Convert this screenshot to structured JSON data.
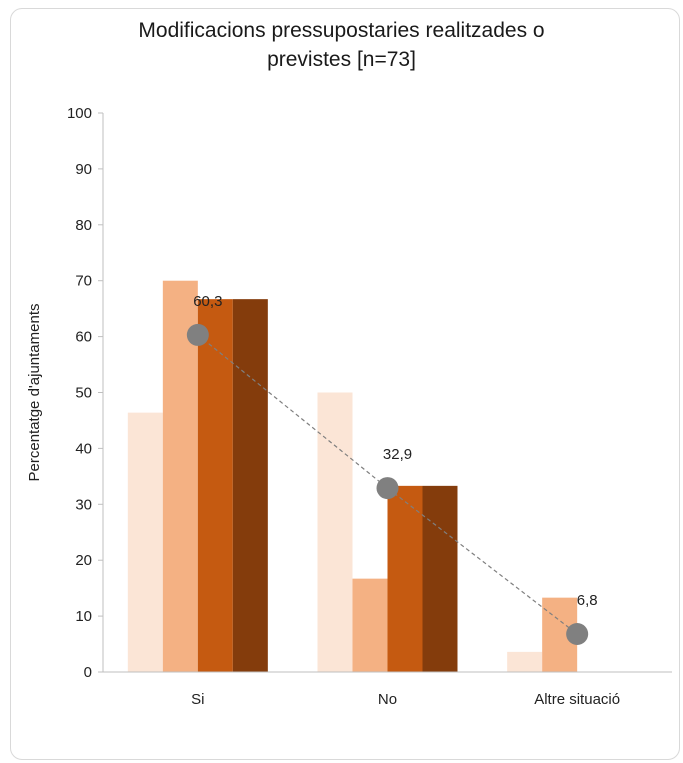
{
  "chart_data": {
    "type": "bar",
    "title_line1": "Modificacions pressupostaries realitzades o",
    "title_line2": "previstes [n=73]",
    "ylabel": "Percentatge d'ajuntaments",
    "ylim": [
      0,
      100
    ],
    "yticks": [
      0,
      10,
      20,
      30,
      40,
      50,
      60,
      70,
      80,
      90,
      100
    ],
    "categories": [
      "Si",
      "No",
      "Altre situació"
    ],
    "series": [
      {
        "values": [
          46.4,
          50.0,
          3.6
        ],
        "color": "#fbe5d6"
      },
      {
        "values": [
          70.0,
          16.7,
          13.3
        ],
        "color": "#f4b183"
      },
      {
        "values": [
          66.7,
          33.3,
          0
        ],
        "color": "#c55a11"
      },
      {
        "values": [
          66.7,
          33.3,
          0
        ],
        "color": "#843c0c"
      }
    ],
    "total_line": {
      "values": [
        60.3,
        32.9,
        6.8
      ],
      "labels": [
        "60,3",
        "32,9",
        "6,8"
      ],
      "color": "#808080"
    }
  }
}
